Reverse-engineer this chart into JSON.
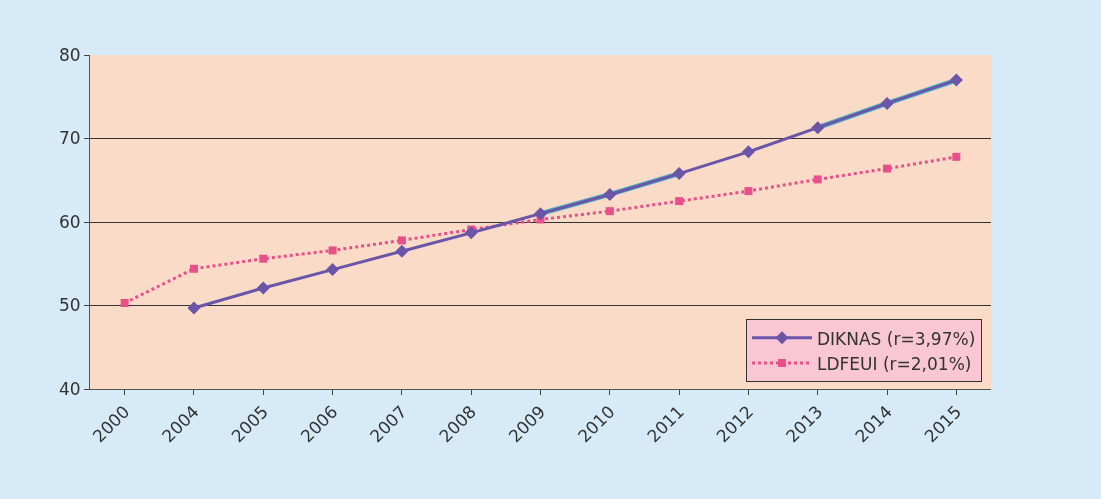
{
  "chart_data": {
    "type": "line",
    "categories": [
      "2000",
      "2004",
      "2005",
      "2006",
      "2007",
      "2008",
      "2009",
      "2010",
      "2011",
      "2012",
      "2013",
      "2014",
      "2015"
    ],
    "series": [
      {
        "color": "#4fb3c4",
        "marker": "none",
        "line_style": "solid",
        "values": [
          null,
          null,
          null,
          null,
          null,
          null,
          61.0,
          63.3,
          65.8,
          null,
          71.3,
          74.2,
          77.0
        ]
      },
      {
        "name": "LDFEUI (r=2,01%)",
        "color": "#e8508a",
        "marker": "square",
        "line_style": "dotted",
        "values": [
          50.3,
          54.4,
          55.6,
          56.6,
          57.8,
          59.1,
          60.3,
          61.3,
          62.5,
          63.7,
          65.1,
          66.4,
          67.8
        ]
      },
      {
        "name": "DIKNAS (r=3,97%)",
        "color": "#6a55a8",
        "marker": "diamond",
        "line_style": "solid",
        "values": [
          null,
          49.7,
          52.1,
          54.3,
          56.5,
          58.7,
          61.0,
          63.3,
          65.8,
          68.4,
          71.3,
          74.2,
          77.0
        ]
      }
    ],
    "ylim": [
      40,
      80
    ],
    "yticks": [
      40,
      50,
      60,
      70,
      80
    ],
    "grid": "y",
    "legend": "bottom right"
  }
}
